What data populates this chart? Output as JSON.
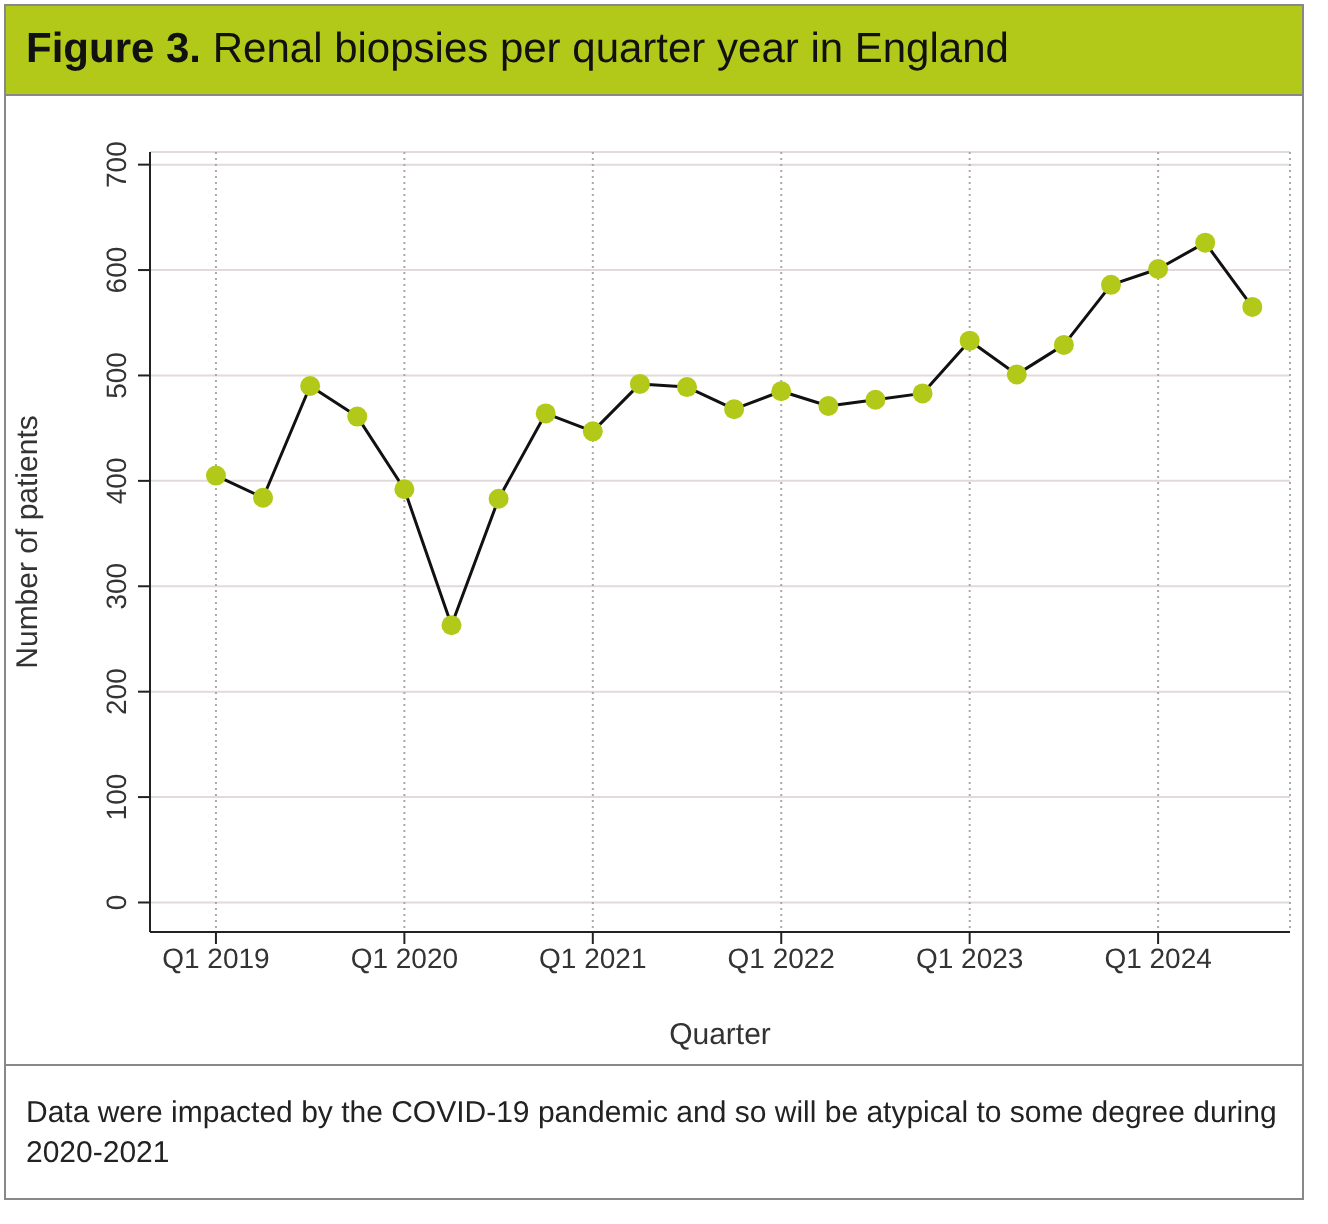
{
  "chart_data": {
    "type": "line",
    "title": "Figure 3. Renal biopsies per quarter year in England",
    "xlabel": "Quarter",
    "ylabel": "Number of patients",
    "categories": [
      "Q1 2019",
      null,
      null,
      null,
      "Q1 2020",
      null,
      null,
      null,
      "Q1 2021",
      null,
      null,
      null,
      "Q1 2022",
      null,
      null,
      null,
      "Q1 2023",
      null,
      null,
      null,
      "Q1 2024",
      null,
      null
    ],
    "series": [
      {
        "color": "#b3c91a",
        "values": [
          405,
          384,
          490,
          461,
          392,
          263,
          383,
          464,
          447,
          492,
          489,
          468,
          485,
          471,
          477,
          483,
          533,
          501,
          529,
          586,
          601,
          626,
          565
        ]
      }
    ],
    "ylim": [
      -28,
      712
    ],
    "yticks": [
      0,
      100,
      200,
      300,
      400,
      500,
      600,
      700
    ],
    "grid": true,
    "marker": "circle",
    "line_style": "solid",
    "annotations": [
      "Data were impacted by the COVID-19 pandemic and so will be atypical to some degree during 2020-2021"
    ]
  }
}
